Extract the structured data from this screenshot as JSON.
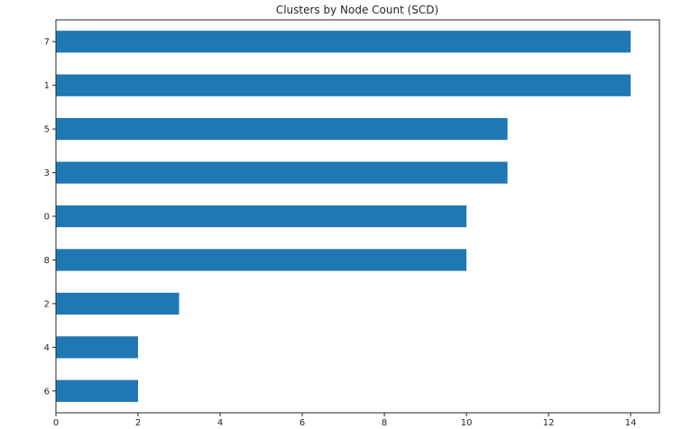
{
  "chart_data": {
    "type": "bar",
    "orientation": "horizontal",
    "title": "Clusters by Node Count (SCD)",
    "xlabel": "",
    "ylabel": "",
    "categories": [
      "7",
      "1",
      "5",
      "3",
      "0",
      "8",
      "2",
      "4",
      "6"
    ],
    "values": [
      14,
      14,
      11,
      11,
      10,
      10,
      3,
      2,
      2
    ],
    "xlim": [
      0,
      14.7
    ],
    "xticks": [
      "0",
      "2",
      "4",
      "6",
      "8",
      "10",
      "12",
      "14"
    ],
    "grid": false,
    "legend": "none",
    "bar_color": "#1f77b4"
  }
}
